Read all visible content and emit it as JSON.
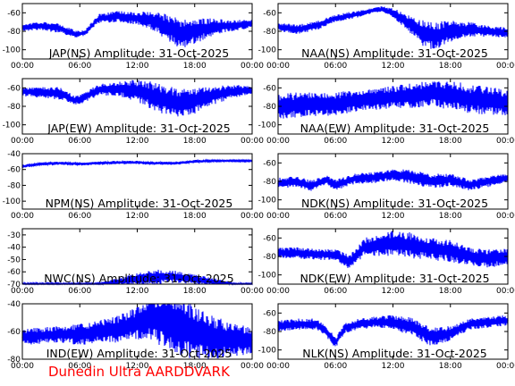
{
  "colors": {
    "trace": "#0000ff",
    "axes": "#000000",
    "credit": "#ff0000"
  },
  "credit": "Dunedin Ultra AARDDVARK",
  "time_ticks": [
    "00:00",
    "06:00",
    "12:00",
    "18:00",
    "00:00"
  ],
  "chart_data": [
    {
      "type": "line",
      "title": "JAP(NS) Amplitude: 31-Oct-2025",
      "ylim": [
        -110,
        -50
      ],
      "yticks": [
        -100,
        -80,
        -60
      ],
      "x": [
        "00:00",
        "02:00",
        "04:00",
        "05:30",
        "06:30",
        "08:00",
        "10:00",
        "12:00",
        "13:30",
        "15:00",
        "16:30",
        "18:00",
        "20:00",
        "22:00",
        "24:00"
      ],
      "values": [
        -76,
        -74,
        -77,
        -83,
        -82,
        -66,
        -64,
        -66,
        -68,
        -75,
        -83,
        -80,
        -75,
        -74,
        -72
      ],
      "spread": [
        4,
        5,
        5,
        4,
        3,
        5,
        6,
        7,
        10,
        14,
        16,
        14,
        9,
        6,
        5
      ]
    },
    {
      "type": "line",
      "title": "NAA(NS) Amplitude: 31-Oct-2025",
      "ylim": [
        -110,
        -50
      ],
      "yticks": [
        -100,
        -80,
        -60
      ],
      "x": [
        "00:00",
        "02:00",
        "04:00",
        "06:00",
        "08:00",
        "10:00",
        "11:00",
        "12:00",
        "13:30",
        "15:00",
        "16:30",
        "18:00",
        "20:00",
        "22:00",
        "24:00"
      ],
      "values": [
        -75,
        -78,
        -74,
        -66,
        -62,
        -57,
        -56,
        -60,
        -70,
        -82,
        -85,
        -80,
        -78,
        -80,
        -82
      ],
      "spread": [
        5,
        5,
        5,
        4,
        4,
        3,
        3,
        5,
        9,
        14,
        16,
        12,
        8,
        6,
        6
      ]
    },
    {
      "type": "line",
      "title": "JAP(EW) Amplitude: 31-Oct-2025",
      "ylim": [
        -110,
        -50
      ],
      "yticks": [
        -100,
        -80,
        -60
      ],
      "x": [
        "00:00",
        "02:00",
        "04:00",
        "05:30",
        "06:30",
        "08:00",
        "10:00",
        "12:00",
        "14:00",
        "16:00",
        "18:00",
        "20:00",
        "22:00",
        "24:00"
      ],
      "values": [
        -64,
        -65,
        -66,
        -74,
        -70,
        -62,
        -61,
        -63,
        -70,
        -76,
        -74,
        -68,
        -64,
        -62
      ],
      "spread": [
        5,
        6,
        7,
        5,
        6,
        6,
        8,
        12,
        16,
        16,
        14,
        10,
        7,
        5
      ]
    },
    {
      "type": "line",
      "title": "NAA(EW) Amplitude: 31-Oct-2025",
      "ylim": [
        -110,
        -50
      ],
      "yticks": [
        -100,
        -80,
        -60
      ],
      "x": [
        "00:00",
        "02:00",
        "04:00",
        "06:00",
        "08:00",
        "10:00",
        "12:00",
        "14:00",
        "16:00",
        "18:00",
        "20:00",
        "22:00",
        "24:00"
      ],
      "values": [
        -80,
        -79,
        -78,
        -77,
        -74,
        -72,
        -70,
        -68,
        -66,
        -68,
        -72,
        -74,
        -76
      ],
      "spread": [
        14,
        14,
        13,
        13,
        12,
        12,
        12,
        14,
        14,
        16,
        16,
        15,
        14
      ]
    },
    {
      "type": "line",
      "title": "NPM(NS) Amplitude: 31-Oct-2025",
      "ylim": [
        -110,
        -40
      ],
      "yticks": [
        -100,
        -80,
        -60,
        -40
      ],
      "x": [
        "00:00",
        "02:00",
        "04:00",
        "06:00",
        "08:00",
        "10:00",
        "12:00",
        "14:00",
        "16:00",
        "18:00",
        "20:00",
        "22:00",
        "24:00"
      ],
      "values": [
        -56,
        -53,
        -52,
        -53,
        -52,
        -51,
        -51,
        -52,
        -52,
        -50,
        -49,
        -49,
        -49
      ],
      "spread": [
        2,
        2,
        2,
        2,
        2,
        2,
        2,
        2,
        2,
        2,
        1,
        1,
        1
      ]
    },
    {
      "type": "line",
      "title": "NDK(NS) Amplitude: 31-Oct-2025",
      "ylim": [
        -110,
        -50
      ],
      "yticks": [
        -100,
        -80,
        -60
      ],
      "x": [
        "00:00",
        "02:00",
        "03:30",
        "05:00",
        "06:00",
        "08:00",
        "10:00",
        "12:00",
        "14:00",
        "16:00",
        "18:00",
        "20:00",
        "22:00",
        "24:00"
      ],
      "values": [
        -82,
        -80,
        -85,
        -78,
        -84,
        -77,
        -76,
        -73,
        -75,
        -80,
        -78,
        -84,
        -80,
        -76
      ],
      "spread": [
        6,
        6,
        6,
        5,
        6,
        6,
        6,
        6,
        8,
        8,
        7,
        6,
        6,
        5
      ]
    },
    {
      "type": "line",
      "title": "NWC(NS) Amplitude: 31-Oct-2025",
      "ylim": [
        -70,
        -25
      ],
      "yticks": [
        -70,
        -60,
        -50,
        -40,
        -30
      ],
      "x": [
        "00:00",
        "02:00",
        "04:00",
        "06:00",
        "08:00",
        "10:00",
        "12:00",
        "14:00",
        "16:00",
        "18:00",
        "20:00",
        "22:00",
        "24:00"
      ],
      "values": [
        -70,
        -70,
        -70,
        -70,
        -70,
        -68,
        -66,
        -64,
        -64,
        -66,
        -68,
        -70,
        -70
      ],
      "spread": [
        1,
        1,
        1,
        1,
        1,
        3,
        5,
        6,
        5,
        4,
        3,
        1,
        1
      ]
    },
    {
      "type": "line",
      "title": "NDK(EW) Amplitude: 31-Oct-2025",
      "ylim": [
        -110,
        -50
      ],
      "yticks": [
        -100,
        -80,
        -60
      ],
      "x": [
        "00:00",
        "02:00",
        "04:00",
        "06:00",
        "07:30",
        "09:00",
        "10:30",
        "12:00",
        "14:00",
        "16:00",
        "18:00",
        "20:00",
        "22:00",
        "24:00"
      ],
      "values": [
        -76,
        -76,
        -78,
        -78,
        -86,
        -70,
        -68,
        -66,
        -68,
        -72,
        -74,
        -80,
        -82,
        -80
      ],
      "spread": [
        6,
        6,
        6,
        6,
        8,
        10,
        12,
        14,
        14,
        12,
        12,
        10,
        10,
        10
      ]
    },
    {
      "type": "line",
      "title": "IND(EW) Amplitude: 31-Oct-2025",
      "ylim": [
        -80,
        -40
      ],
      "yticks": [
        -80,
        -60,
        -40
      ],
      "x": [
        "00:00",
        "02:00",
        "04:00",
        "06:00",
        "08:00",
        "10:00",
        "12:00",
        "13:30",
        "15:00",
        "16:30",
        "18:00",
        "20:00",
        "22:00",
        "24:00"
      ],
      "values": [
        -64,
        -63,
        -62,
        -62,
        -60,
        -58,
        -54,
        -50,
        -52,
        -56,
        -60,
        -64,
        -66,
        -66
      ],
      "spread": [
        6,
        6,
        6,
        8,
        8,
        10,
        12,
        18,
        20,
        22,
        20,
        16,
        12,
        10
      ]
    },
    {
      "type": "line",
      "title": "NLK(NS) Amplitude: 31-Oct-2025",
      "ylim": [
        -110,
        -50
      ],
      "yticks": [
        -100,
        -80,
        -60
      ],
      "x": [
        "00:00",
        "02:00",
        "04:00",
        "05:00",
        "06:00",
        "07:00",
        "08:30",
        "10:00",
        "12:00",
        "14:00",
        "16:00",
        "18:00",
        "20:00",
        "22:00",
        "24:00"
      ],
      "values": [
        -74,
        -72,
        -72,
        -80,
        -92,
        -76,
        -72,
        -70,
        -70,
        -75,
        -86,
        -82,
        -72,
        -70,
        -68
      ],
      "spread": [
        6,
        6,
        6,
        6,
        6,
        6,
        6,
        6,
        8,
        10,
        10,
        8,
        6,
        6,
        6
      ]
    }
  ]
}
